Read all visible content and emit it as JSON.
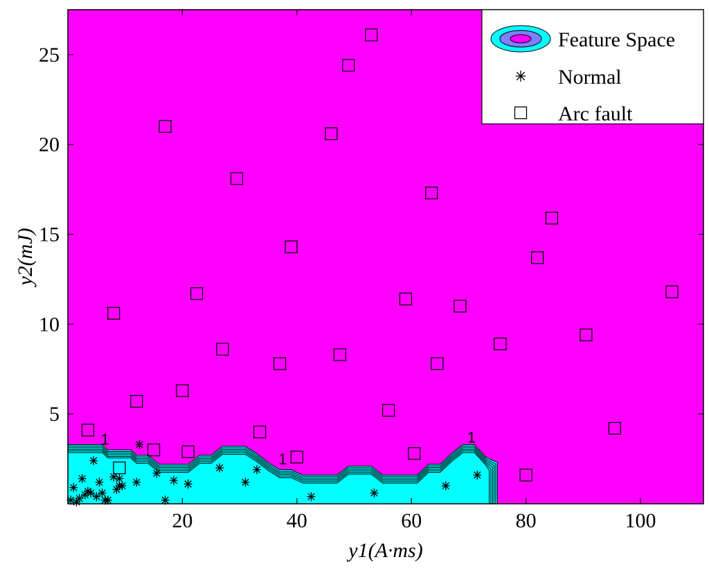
{
  "chart_data": {
    "type": "scatter",
    "xlabel": "y1(A·ms)",
    "ylabel": "y2(mJ)",
    "xlim": [
      0,
      111
    ],
    "ylim": [
      0,
      27.5
    ],
    "x_ticks": [
      20,
      40,
      60,
      80,
      100
    ],
    "y_ticks": [
      5,
      10,
      15,
      20,
      25
    ],
    "grid": false,
    "legend_position": "top-right",
    "legend": [
      "Feature Space",
      "Normal",
      "Arc fault"
    ],
    "colors": {
      "background_region": "#ff00ff",
      "feature_region": "#00ffff",
      "feature_inner": "#7f7fff",
      "markers": "#000000"
    },
    "feature_boundary": {
      "x": [
        0,
        6,
        7,
        11,
        12,
        14,
        16,
        20,
        21,
        23,
        25,
        27,
        29,
        31,
        33,
        35,
        37,
        39,
        41,
        43,
        45,
        47,
        49,
        51,
        53,
        55,
        57,
        59,
        61,
        63,
        65,
        67,
        69,
        71,
        73,
        75
      ],
      "y": [
        3.3,
        3.3,
        3.0,
        3.0,
        2.7,
        2.7,
        2.2,
        2.2,
        2.2,
        2.7,
        2.7,
        3.2,
        3.2,
        3.2,
        2.8,
        2.3,
        1.9,
        1.9,
        1.6,
        1.6,
        1.6,
        1.6,
        2.1,
        2.1,
        2.1,
        1.6,
        1.6,
        1.6,
        1.6,
        2.2,
        2.2,
        2.8,
        3.3,
        3.3,
        2.6,
        2.3
      ]
    },
    "contour_labels": [
      {
        "text": "1",
        "x": 6.5,
        "y": 3.3
      },
      {
        "text": "1",
        "x": 37.5,
        "y": 2.2
      },
      {
        "text": "1",
        "x": 70.5,
        "y": 3.4
      }
    ],
    "series": [
      {
        "name": "Normal",
        "x": [
          0.5,
          1.0,
          1.5,
          2.0,
          2.5,
          3.0,
          3.5,
          4.0,
          4.5,
          5.0,
          5.5,
          6.0,
          6.5,
          7.0,
          8.0,
          8.5,
          9.0,
          9.0,
          9.5,
          12.0,
          12.5,
          15.5,
          17.0,
          18.5,
          21.0,
          26.5,
          31.0,
          33.0,
          42.5,
          53.5,
          66.0,
          71.5
        ],
        "y": [
          0.2,
          0.9,
          0.1,
          0.3,
          1.4,
          0.5,
          0.7,
          0.6,
          2.4,
          0.4,
          1.2,
          0.6,
          0.2,
          0.2,
          1.5,
          0.8,
          1.0,
          1.4,
          1.0,
          1.2,
          3.3,
          1.7,
          0.2,
          1.3,
          1.1,
          2.0,
          1.2,
          1.9,
          0.4,
          0.6,
          1.0,
          1.6
        ]
      },
      {
        "name": "Arc fault",
        "x": [
          3.5,
          8.0,
          9.0,
          12.0,
          15.0,
          17.0,
          20.0,
          21.0,
          22.5,
          27.0,
          29.5,
          33.5,
          37.0,
          39.0,
          40.0,
          46.0,
          47.5,
          49.0,
          53.0,
          56.0,
          59.0,
          60.5,
          63.5,
          64.5,
          68.5,
          75.5,
          80.0,
          82.0,
          84.5,
          90.5,
          95.5,
          105.5
        ],
        "y": [
          4.1,
          10.6,
          2.0,
          5.7,
          3.0,
          21.0,
          6.3,
          2.9,
          11.7,
          8.6,
          18.1,
          4.0,
          7.8,
          14.3,
          2.6,
          20.6,
          8.3,
          24.4,
          26.1,
          5.2,
          11.4,
          2.8,
          17.3,
          7.8,
          11.0,
          8.9,
          1.6,
          13.7,
          15.9,
          9.4,
          4.2,
          11.8
        ]
      }
    ]
  }
}
